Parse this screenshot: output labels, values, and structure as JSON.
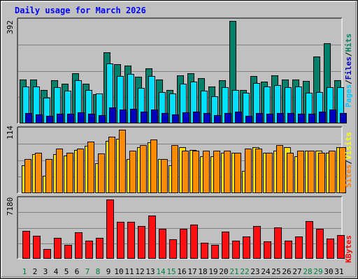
{
  "chart_data": [
    {
      "type": "bar",
      "title": "Daily usage for March 2026",
      "categories": [
        "1",
        "2",
        "3",
        "4",
        "5",
        "6",
        "7",
        "8",
        "9",
        "10",
        "11",
        "12",
        "13",
        "14",
        "15",
        "16",
        "17",
        "18",
        "19",
        "20",
        "21",
        "22",
        "23",
        "24",
        "25",
        "26",
        "27",
        "28",
        "29",
        "30",
        "31"
      ],
      "weekend_days": [
        "1",
        "7",
        "8",
        "14",
        "15",
        "21",
        "22",
        "28",
        "29"
      ],
      "ymax_label": "392",
      "ylim": [
        0,
        392
      ],
      "grid": true,
      "legend": [
        {
          "label": "Pages",
          "color": "#00c8ff"
        },
        {
          "label": "Files",
          "color": "#0000c0"
        },
        {
          "label": "Hits",
          "color": "#008060"
        }
      ],
      "series": [
        {
          "name": "Hits",
          "color": "#00806a",
          "values": [
            168,
            168,
            128,
            164,
            151,
            192,
            151,
            111,
            272,
            226,
            220,
            178,
            210,
            168,
            128,
            184,
            192,
            172,
            142,
            164,
            392,
            128,
            182,
            160,
            184,
            168,
            168,
            162,
            257,
            307,
            166
          ]
        },
        {
          "name": "Pages",
          "color": "#00e0ff",
          "values": [
            142,
            140,
            98,
            138,
            126,
            166,
            128,
            115,
            230,
            182,
            188,
            136,
            182,
            120,
            115,
            152,
            160,
            124,
            104,
            138,
            128,
            118,
            154,
            140,
            146,
            138,
            140,
            118,
            119,
            138,
            138
          ]
        },
        {
          "name": "Files",
          "color": "#0000c0",
          "values": [
            40,
            35,
            30,
            37,
            37,
            42,
            37,
            32,
            60,
            52,
            55,
            45,
            52,
            40,
            35,
            42,
            45,
            40,
            33,
            40,
            45,
            30,
            40,
            37,
            40,
            40,
            37,
            37,
            45,
            52,
            40
          ]
        }
      ]
    },
    {
      "type": "bar",
      "ymax_label": "114",
      "ylim": [
        0,
        114
      ],
      "grid": true,
      "legend": [
        {
          "label": "Sites",
          "color": "#ff8000"
        },
        {
          "label": "Visits",
          "color": "#ffff00"
        }
      ],
      "series": [
        {
          "name": "Visits",
          "color": "#ffe000",
          "values": [
            50,
            70,
            31,
            70,
            68,
            78,
            85,
            54,
            94,
            98,
            61,
            83,
            91,
            61,
            50,
            83,
            78,
            67,
            67,
            73,
            73,
            40,
            83,
            73,
            77,
            83,
            67,
            77,
            77,
            73,
            83
          ]
        },
        {
          "name": "Sites",
          "color": "#ff8c00",
          "values": [
            61,
            73,
            61,
            80,
            73,
            80,
            93,
            71,
            101,
            114,
            77,
            86,
            96,
            61,
            86,
            77,
            77,
            77,
            77,
            77,
            73,
            80,
            80,
            73,
            86,
            73,
            77,
            77,
            73,
            77,
            83
          ]
        }
      ]
    },
    {
      "type": "bar",
      "ymax_label": "7180",
      "ylim": [
        0,
        7180
      ],
      "grid": true,
      "legend": [
        {
          "label": "KBytes",
          "color": "#ff0000"
        }
      ],
      "series": [
        {
          "name": "KBytes",
          "color": "#ff1010",
          "values": [
            3380,
            2820,
            1150,
            2560,
            1730,
            3180,
            2170,
            2510,
            7180,
            4490,
            4490,
            4010,
            5230,
            3650,
            2350,
            3650,
            4120,
            1950,
            1730,
            3260,
            2220,
            2730,
            3960,
            2140,
            3790,
            2220,
            2680,
            4600,
            3650,
            2430,
            2860
          ]
        }
      ]
    }
  ]
}
